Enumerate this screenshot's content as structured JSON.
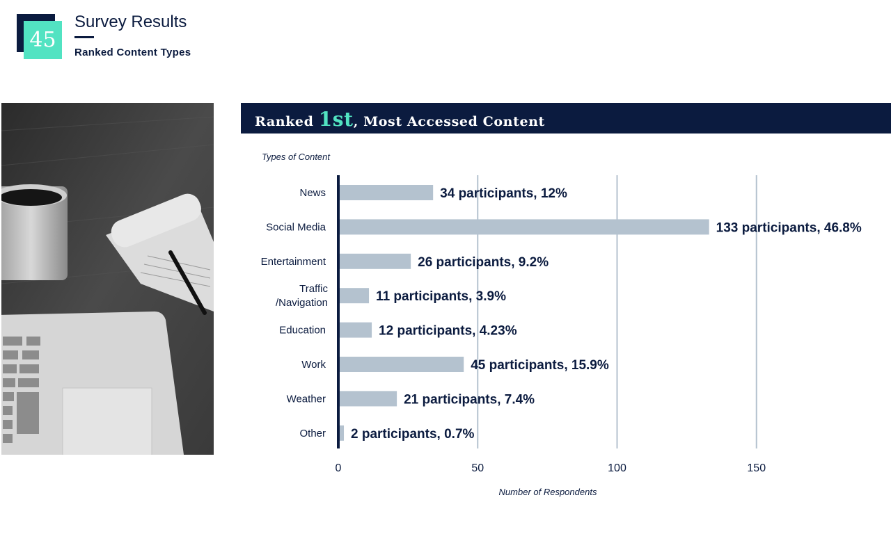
{
  "header": {
    "badge_number": "45",
    "title": "Survey Results",
    "subtitle": "Ranked Content Types"
  },
  "banner": {
    "prefix": "Ranked ",
    "highlight": "1st",
    "suffix": ", Most Accessed Content"
  },
  "colors": {
    "navy": "#0b1b3f",
    "accent": "#52e3c2",
    "bar": "#b4c2cf",
    "grid": "#b4c2cf"
  },
  "chart_data": {
    "type": "bar",
    "orientation": "horizontal",
    "categories": [
      "News",
      "Social Media",
      "Entertainment",
      "Traffic\n/Navigation",
      "Education",
      "Work",
      "Weather",
      "Other"
    ],
    "values": [
      34,
      133,
      26,
      11,
      12,
      45,
      21,
      2
    ],
    "data_labels": [
      "34 participants, 12%",
      "133 participants, 46.8%",
      "26 participants, 9.2%",
      "11 participants, 3.9%",
      "12 participants, 4.23%",
      "45 participants, 15.9%",
      "21 participants, 7.4%",
      "2 participants, 0.7%"
    ],
    "xlabel": "Number of Respondents",
    "ylabel": "Types of Content",
    "xticks": [
      0,
      50,
      100,
      150
    ],
    "xlim": [
      0,
      197
    ],
    "grid": true
  }
}
